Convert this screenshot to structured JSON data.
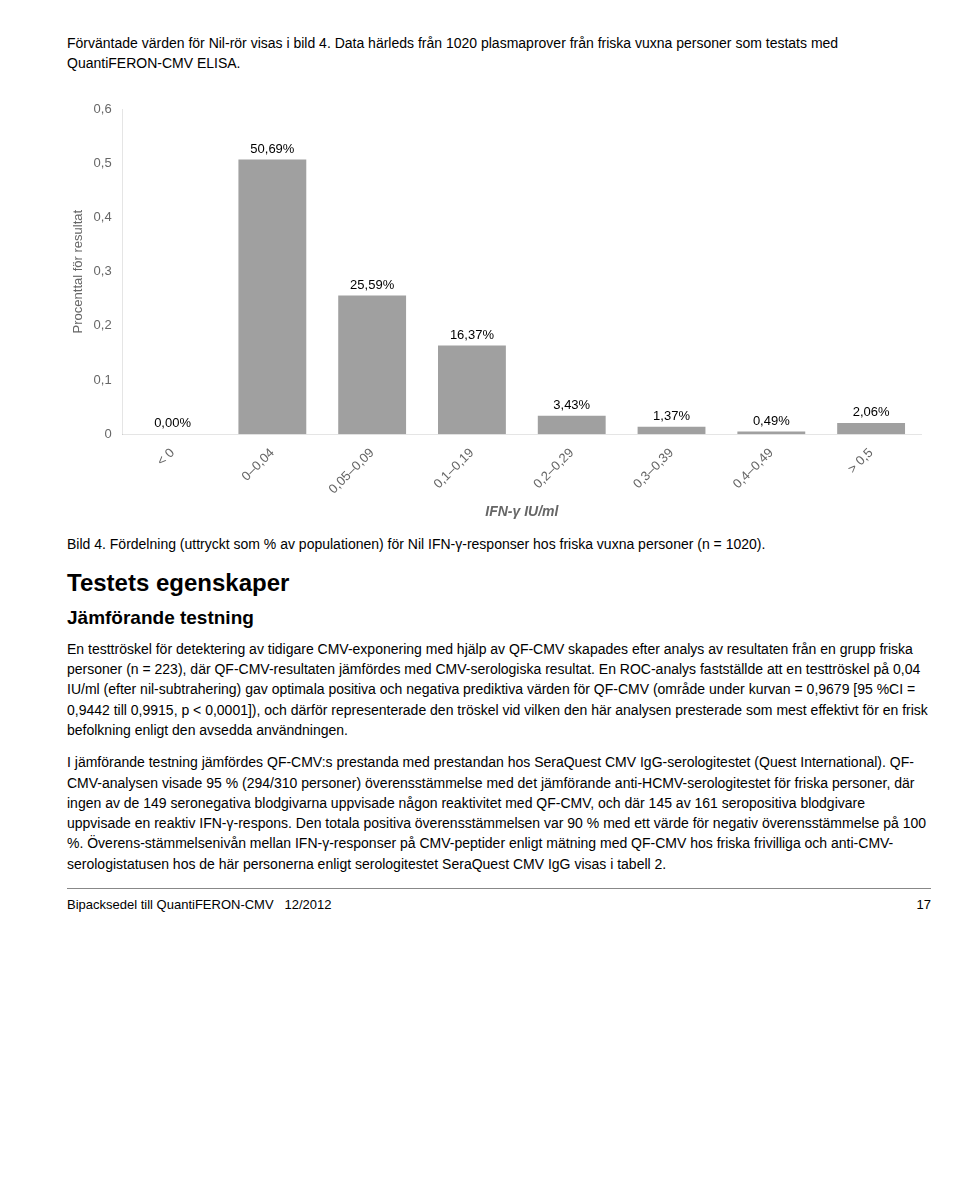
{
  "chart_data": {
    "type": "bar",
    "categories": [
      "< 0",
      "0–0,04",
      "0,05–0,09",
      "0,1–0,19",
      "0,2–0,29",
      "0,3–0,39",
      "0,4–0,49",
      "> 0,5"
    ],
    "values": [
      0.0,
      0.5069,
      0.2559,
      0.1637,
      0.0343,
      0.0137,
      0.0049,
      0.0206
    ],
    "value_labels": [
      "0,00%",
      "50,69%",
      "25,59%",
      "16,37%",
      "3,43%",
      "1,37%",
      "0,49%",
      "2,06%"
    ],
    "data_labels": true,
    "color": "#a0a0a0",
    "xlabel": "IFN-γ IU/ml",
    "ylabel": "Procenttal för resultat",
    "ylim": [
      0,
      0.6
    ],
    "yticks": [
      0,
      {
        "value": 0.1,
        "label": "0,1"
      },
      {
        "value": 0.2,
        "label": "0,2"
      },
      {
        "value": 0.3,
        "label": "0,3"
      },
      {
        "value": 0.4,
        "label": "0,4"
      },
      {
        "value": 0.5,
        "label": "0,5"
      },
      {
        "value": 0.6,
        "label": "0,6"
      }
    ],
    "grid": false,
    "annotations": [
      "Förväntade värden för Nil-rör visas i bild 4. Data härleds från 1020 plasmaprover från friska vuxna personer som testats med QuantiFERON-CMV ELISA.",
      "Bild 4. Fördelning (uttryckt som % av populationen) för Nil IFN-γ-responser hos friska vuxna personer (n = 1020).",
      "Testets egenskaper",
      "Jämförande testning",
      "En testtröskel för detektering av tidigare CMV-exponering med hjälp av QF-CMV skapades efter analys av resultaten från en grupp friska personer (n = 223), där QF-CMV-resultaten jämfördes med CMV-serologiska resultat. En ROC-analys fastställde att en testtröskel på 0,04 IU/ml (efter nil-subtrahering) gav optimala positiva och negativa prediktiva värden för QF-CMV (område under kurvan = 0,9679 [95 %CI = 0,9442 till 0,9915, p < 0,0001]), och därför representerade den tröskel vid vilken den här analysen presterade som mest effektivt för en frisk befolkning enligt den avsedda användningen.",
      "I jämförande testning jämfördes QF-CMV:s prestanda med prestandan hos SeraQuest CMV IgG-serologitestet (Quest International). QF-CMV-analysen visade 95 % (294/310 personer) överensstämmelse med det jämförande anti-HCMV-serologitestet för friska personer, där ingen av de 149 seronegativa blodgivarna uppvisade någon reaktivitet med QF-CMV, och där 145 av 161 seropositiva blodgivare uppvisade en reaktiv IFN-γ-respons. Den totala positiva överensstämmelsen var 90 % med ett värde för negativ överensstämmelse på 100 %. Överens-stämmelsenivån mellan IFN-γ-responser på CMV-peptider enligt mätning med QF-CMV hos friska frivilliga och anti-CMV-serologistatusen hos de här personerna enligt serologitestet SeraQuest CMV IgG visas i tabell 2.",
      "Bipacksedel till QuantiFERON-CMV   12/2012",
      "17"
    ]
  }
}
